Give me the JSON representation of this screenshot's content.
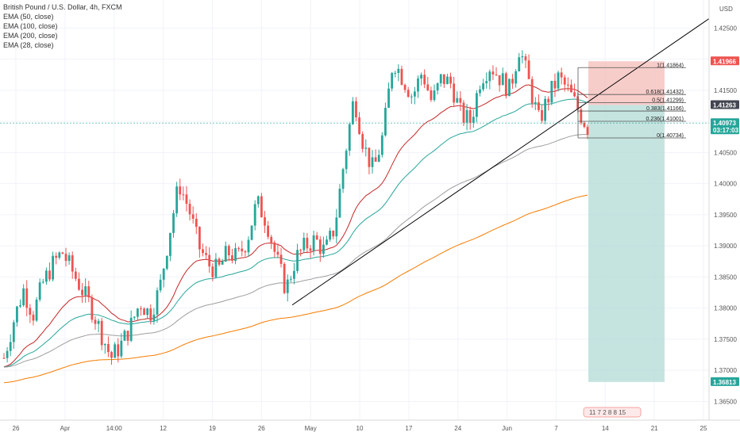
{
  "legend": {
    "title": "British Pound / U.S. Dollar, 4h, FXCM",
    "indicators": [
      "EMA (50, close)",
      "EMA (100, close)",
      "EMA (200, close)",
      "EMA (28, close)"
    ]
  },
  "currency": "USD",
  "colors": {
    "up": "#26a69a",
    "down": "#ef5350",
    "ema50": "#26a69a",
    "ema100": "#9e9e9e",
    "ema200": "#f57c00",
    "ema28": "#c62828",
    "trendline": "#000000",
    "stop_zone": "#f4b8b4",
    "target_zone": "#b7ddd8",
    "tag_red": "#ef5350",
    "tag_green": "#26a69a",
    "tag_dark": "#434651"
  },
  "chart_data": {
    "type": "candlestick",
    "x_axis_labels": [
      "26",
      "Apr",
      "14:00",
      "12",
      "19",
      "26",
      "May",
      "10",
      "17",
      "24",
      "Jun",
      "7",
      "14",
      "21",
      "25"
    ],
    "y_axis_labels": [
      "1.42500",
      "1.42000",
      "1.41500",
      "1.41000",
      "1.40500",
      "1.40000",
      "1.39500",
      "1.39000",
      "1.38500",
      "1.38000",
      "1.37500",
      "1.37000",
      "1.36500"
    ],
    "ylim": [
      1.362,
      1.4295
    ],
    "price_tags": [
      {
        "value": 1.41966,
        "label": "1.41966",
        "color": "tag_red"
      },
      {
        "value": 1.41263,
        "label": "1.41263",
        "color": "tag_dark"
      },
      {
        "value": 1.40973,
        "label": "1.40973",
        "sub": "03:17:03",
        "color": "tag_green"
      },
      {
        "value": 1.36813,
        "label": "1.36813",
        "color": "tag_green"
      }
    ],
    "fibonacci": [
      {
        "level": "1",
        "price": 1.41864
      },
      {
        "level": "0.618",
        "price": 1.41432
      },
      {
        "level": "0.5",
        "price": 1.41299
      },
      {
        "level": "0.383",
        "price": 1.41166
      },
      {
        "level": "0.236",
        "price": 1.41001
      },
      {
        "level": "0",
        "price": 1.40734
      }
    ],
    "trendline": {
      "start_price": 1.3805,
      "end_price": 1.4265
    },
    "position": {
      "entry": 1.41263,
      "stop": 1.41966,
      "target": 1.36813
    },
    "events_label": "11 7 2 8 8 15",
    "approx_close_series": [
      1.372,
      1.378,
      1.383,
      1.379,
      1.384,
      1.387,
      1.389,
      1.386,
      1.383,
      1.38,
      1.376,
      1.372,
      1.374,
      1.377,
      1.381,
      1.379,
      1.383,
      1.392,
      1.4,
      1.396,
      1.39,
      1.387,
      1.386,
      1.389,
      1.388,
      1.391,
      1.397,
      1.394,
      1.388,
      1.383,
      1.388,
      1.39,
      1.391,
      1.389,
      1.393,
      1.404,
      1.414,
      1.406,
      1.402,
      1.408,
      1.42,
      1.417,
      1.414,
      1.418,
      1.413,
      1.417,
      1.416,
      1.411,
      1.41,
      1.417,
      1.419,
      1.417,
      1.415,
      1.422,
      1.416,
      1.41,
      1.414,
      1.417,
      1.415,
      1.412,
      1.409
    ]
  }
}
